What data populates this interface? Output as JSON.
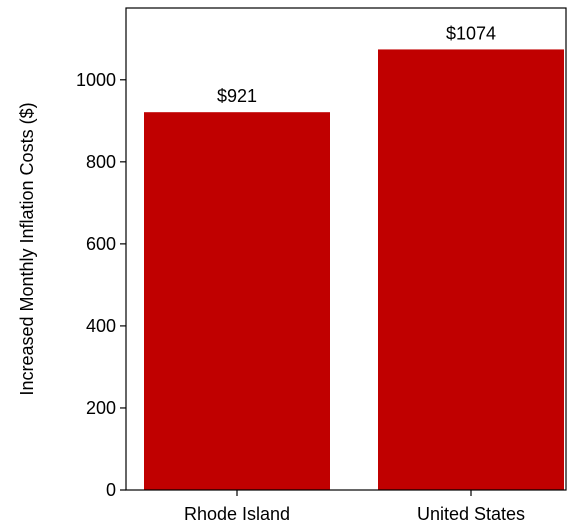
{
  "chart_data": {
    "type": "bar",
    "title": "",
    "xlabel": "",
    "ylabel": "Increased Monthly Inflation Costs ($)",
    "categories": [
      "Rhode Island",
      "United States"
    ],
    "values": [
      921,
      1074
    ],
    "data_labels": [
      "$921",
      "$1074"
    ],
    "ylim": [
      0,
      1175
    ],
    "yticks": [
      0,
      200,
      400,
      600,
      800,
      1000
    ],
    "ytick_labels": [
      "0",
      "200",
      "400",
      "600",
      "800",
      "1000"
    ],
    "bar_color": "#c00000",
    "grid": false,
    "legend": "none"
  }
}
